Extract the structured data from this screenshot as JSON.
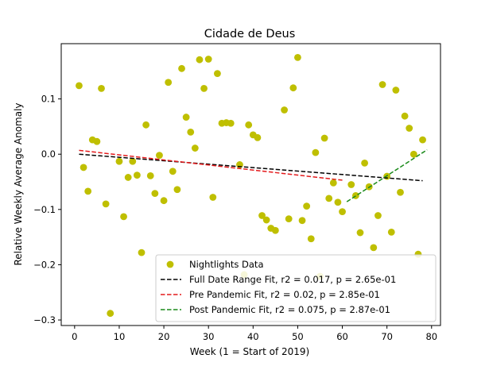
{
  "chart_data": {
    "type": "scatter",
    "title": "Cidade de Deus",
    "xlabel": "Week (1 = Start of 2019)",
    "ylabel": "Relative Weekly Average Anomaly",
    "xlim": [
      -3,
      82
    ],
    "ylim": [
      -0.31,
      0.2
    ],
    "xticks": [
      0,
      10,
      20,
      30,
      40,
      50,
      60,
      70,
      80
    ],
    "yticks": [
      -0.3,
      -0.2,
      -0.1,
      0.0,
      0.1
    ],
    "ytick_labels": [
      "−0.3",
      "−0.2",
      "−0.1",
      "0.0",
      "0.1"
    ],
    "grid": false,
    "legend_position": "lower-right",
    "scatter_series": {
      "name": "Nightlights Data",
      "color": "#bfbf00",
      "points": [
        [
          1,
          0.124
        ],
        [
          2,
          -0.024
        ],
        [
          3,
          -0.067
        ],
        [
          4,
          0.026
        ],
        [
          5,
          0.023
        ],
        [
          6,
          0.119
        ],
        [
          7,
          -0.09
        ],
        [
          8,
          -0.288
        ],
        [
          10,
          -0.013
        ],
        [
          11,
          -0.113
        ],
        [
          12,
          -0.042
        ],
        [
          13,
          -0.013
        ],
        [
          14,
          -0.038
        ],
        [
          15,
          -0.178
        ],
        [
          16,
          0.053
        ],
        [
          17,
          -0.039
        ],
        [
          18,
          -0.071
        ],
        [
          19,
          -0.002
        ],
        [
          20,
          -0.084
        ],
        [
          21,
          0.13
        ],
        [
          22,
          -0.031
        ],
        [
          23,
          -0.064
        ],
        [
          24,
          0.155
        ],
        [
          25,
          0.067
        ],
        [
          26,
          0.04
        ],
        [
          27,
          0.011
        ],
        [
          28,
          0.171
        ],
        [
          29,
          0.119
        ],
        [
          30,
          0.172
        ],
        [
          31,
          -0.078
        ],
        [
          32,
          0.146
        ],
        [
          33,
          0.056
        ],
        [
          34,
          0.057
        ],
        [
          35,
          0.056
        ],
        [
          37,
          -0.019
        ],
        [
          38,
          -0.218
        ],
        [
          39,
          0.053
        ],
        [
          40,
          0.035
        ],
        [
          41,
          0.03
        ],
        [
          42,
          -0.111
        ],
        [
          43,
          -0.119
        ],
        [
          44,
          -0.134
        ],
        [
          45,
          -0.138
        ],
        [
          47,
          0.08
        ],
        [
          48,
          -0.117
        ],
        [
          49,
          0.12
        ],
        [
          50,
          0.175
        ],
        [
          51,
          -0.12
        ],
        [
          52,
          -0.094
        ],
        [
          53,
          -0.153
        ],
        [
          54,
          0.003
        ],
        [
          55,
          -0.221
        ],
        [
          56,
          0.029
        ],
        [
          57,
          -0.08
        ],
        [
          58,
          -0.052
        ],
        [
          59,
          -0.087
        ],
        [
          60,
          -0.104
        ],
        [
          62,
          -0.055
        ],
        [
          63,
          -0.075
        ],
        [
          64,
          -0.142
        ],
        [
          65,
          -0.016
        ],
        [
          66,
          -0.059
        ],
        [
          67,
          -0.169
        ],
        [
          68,
          -0.111
        ],
        [
          69,
          0.126
        ],
        [
          70,
          -0.04
        ],
        [
          71,
          -0.141
        ],
        [
          72,
          0.116
        ],
        [
          73,
          -0.069
        ],
        [
          74,
          0.069
        ],
        [
          75,
          0.047
        ],
        [
          76,
          0.0
        ],
        [
          77,
          -0.181
        ],
        [
          78,
          0.026
        ]
      ]
    },
    "fit_lines": [
      {
        "name": "Full Date Range Fit, r2 = 0.017, p = 2.65e-01",
        "color": "#000000",
        "x": [
          1,
          78
        ],
        "y": [
          0.0,
          -0.048
        ]
      },
      {
        "name": "Pre Pandemic Fit, r2 = 0.02, p = 2.85e-01",
        "color": "#e41a1c",
        "x": [
          1,
          60
        ],
        "y": [
          0.007,
          -0.047
        ]
      },
      {
        "name": "Post Pandemic Fit, r2 = 0.075, p = 2.87e-01",
        "color": "#1a8a1a",
        "x": [
          61,
          79
        ],
        "y": [
          -0.086,
          0.008
        ]
      }
    ]
  }
}
